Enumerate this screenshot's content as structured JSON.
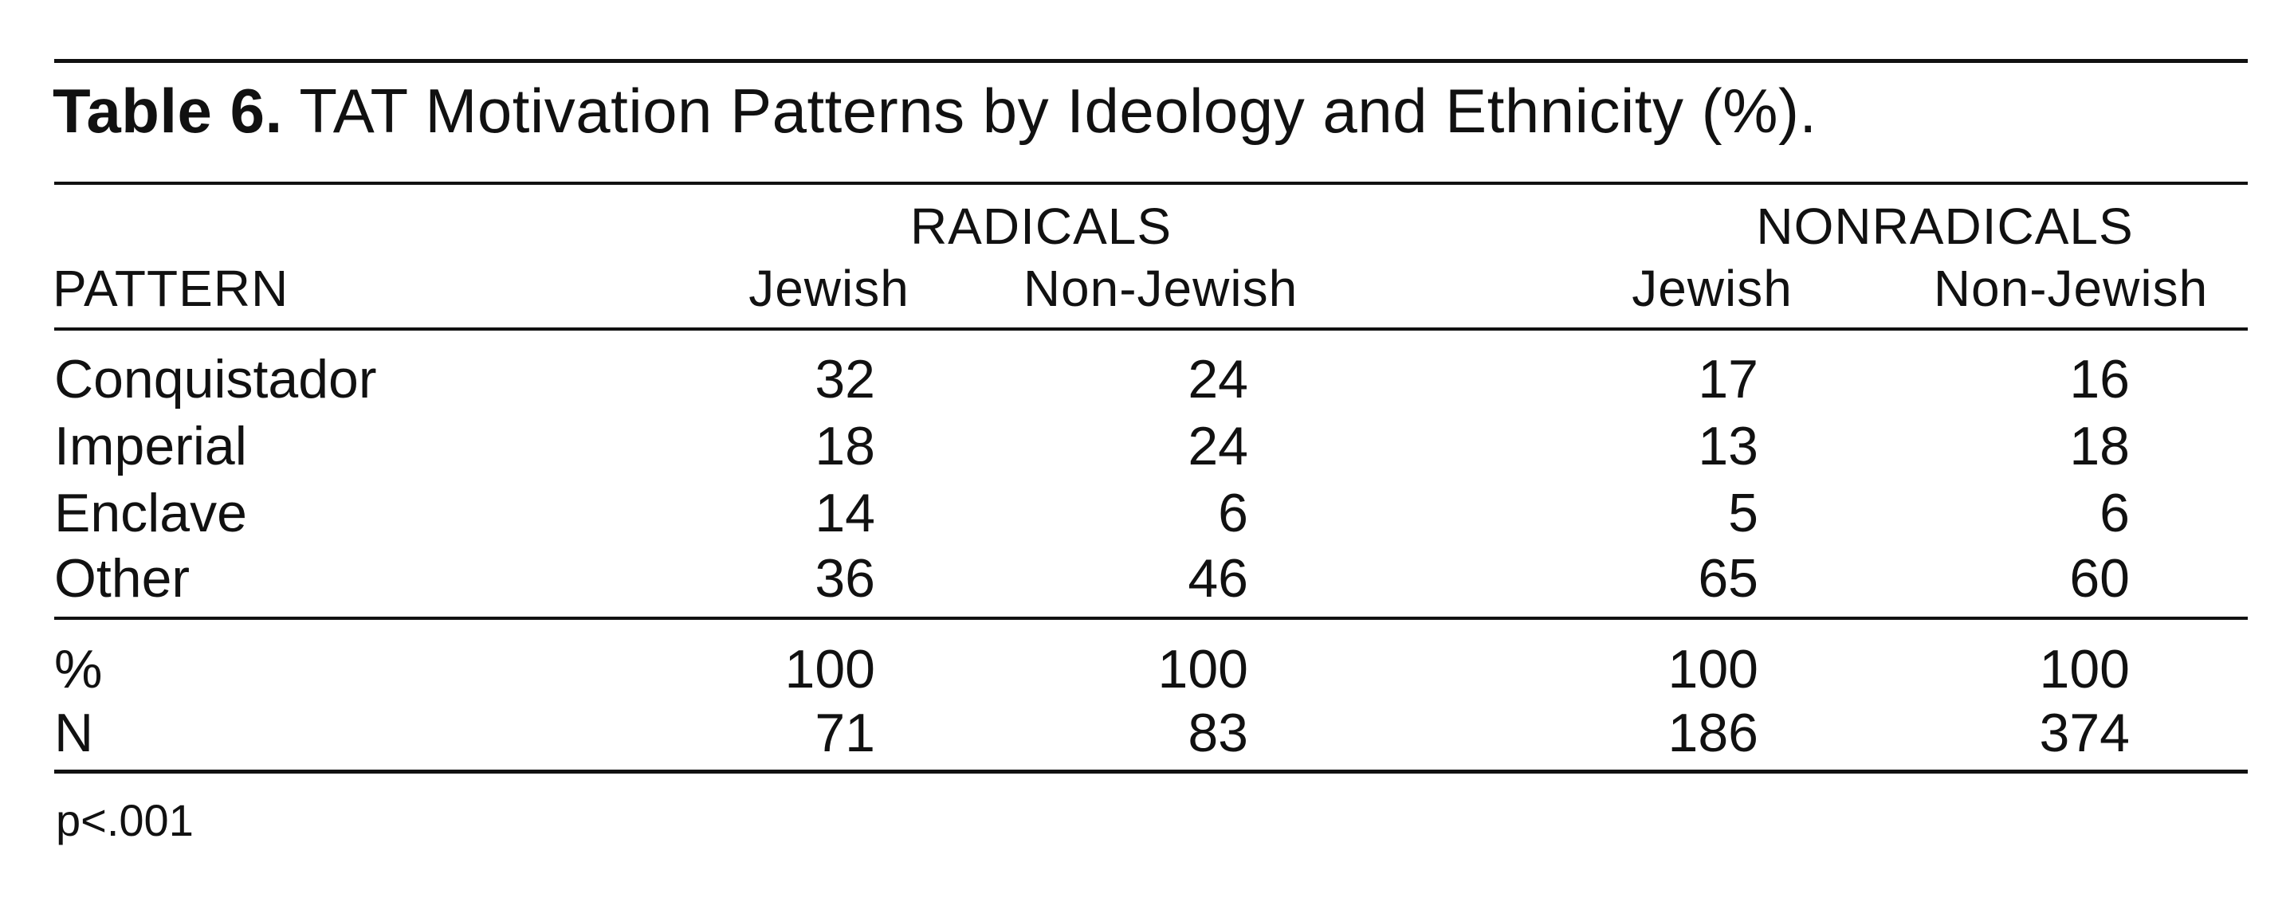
{
  "table": {
    "label": "Table 6.",
    "title": "TAT Motivation Patterns by Ideology and Ethnicity (%).",
    "stub_header": "PATTERN",
    "groups": [
      "RADICALS",
      "NONRADICALS"
    ],
    "columns": [
      "Jewish",
      "Non-Jewish",
      "Jewish",
      "Non-Jewish"
    ],
    "rows": [
      {
        "label": "Conquistador",
        "values": [
          "32",
          "24",
          "17",
          "16"
        ]
      },
      {
        "label": "Imperial",
        "values": [
          "18",
          "24",
          "13",
          "18"
        ]
      },
      {
        "label": "Enclave",
        "values": [
          "14",
          "6",
          "5",
          "6"
        ]
      },
      {
        "label": "Other",
        "values": [
          "36",
          "46",
          "65",
          "60"
        ]
      }
    ],
    "totals": [
      {
        "label": "%",
        "values": [
          "100",
          "100",
          "100",
          "100"
        ]
      },
      {
        "label": "N",
        "values": [
          "71",
          "83",
          "186",
          "374"
        ]
      }
    ],
    "note": "p<.001"
  }
}
